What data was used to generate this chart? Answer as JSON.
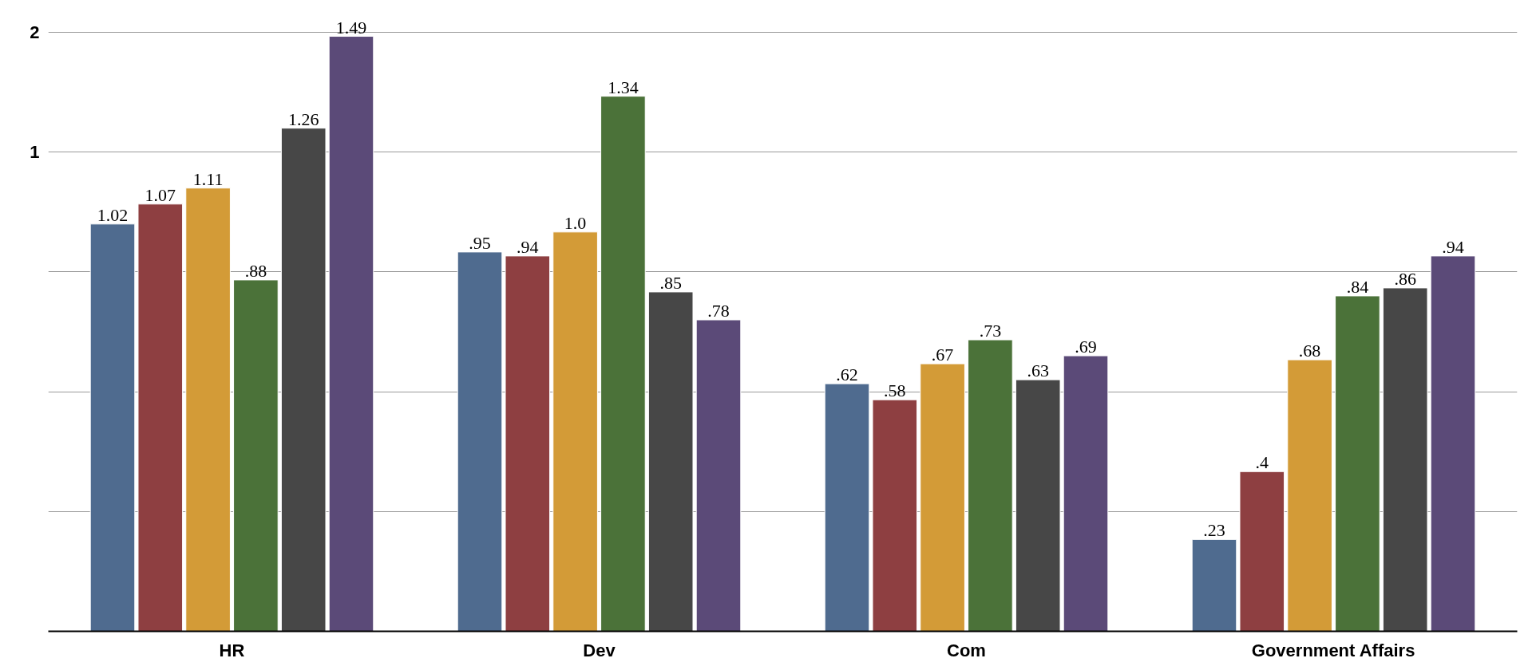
{
  "chart_data": {
    "type": "bar",
    "categories": [
      "HR",
      "Dev",
      "Com",
      "Government Affairs"
    ],
    "series": [
      {
        "color": "#4f6b8f",
        "values": [
          1.02,
          0.95,
          0.62,
          0.23
        ],
        "value_labels": [
          "1.02",
          ".95",
          ".62",
          ".23"
        ]
      },
      {
        "color": "#8e3f41",
        "values": [
          1.07,
          0.94,
          0.58,
          0.4
        ],
        "value_labels": [
          "1.07",
          ".94",
          ".58",
          ".4"
        ]
      },
      {
        "color": "#d39b37",
        "values": [
          1.11,
          1.0,
          0.67,
          0.68
        ],
        "value_labels": [
          "1.11",
          "1.0",
          ".67",
          ".68"
        ]
      },
      {
        "color": "#4b7239",
        "values": [
          0.88,
          1.34,
          0.73,
          0.84
        ],
        "value_labels": [
          ".88",
          "1.34",
          ".73",
          ".84"
        ]
      },
      {
        "color": "#474747",
        "values": [
          1.26,
          0.85,
          0.63,
          0.86
        ],
        "value_labels": [
          "1.26",
          ".85",
          ".63",
          ".86"
        ]
      },
      {
        "color": "#5b4a78",
        "values": [
          1.49,
          0.78,
          0.69,
          0.94
        ],
        "value_labels": [
          "1.49",
          ".78",
          ".69",
          ".94"
        ]
      }
    ],
    "ylim": [
      0,
      1.5
    ],
    "yticks": [
      {
        "value": 0.3,
        "label": null
      },
      {
        "value": 0.6,
        "label": null
      },
      {
        "value": 0.9,
        "label": null
      },
      {
        "value": 1.2,
        "label": "1"
      },
      {
        "value": 1.5,
        "label": "2"
      }
    ],
    "grid": "y"
  }
}
